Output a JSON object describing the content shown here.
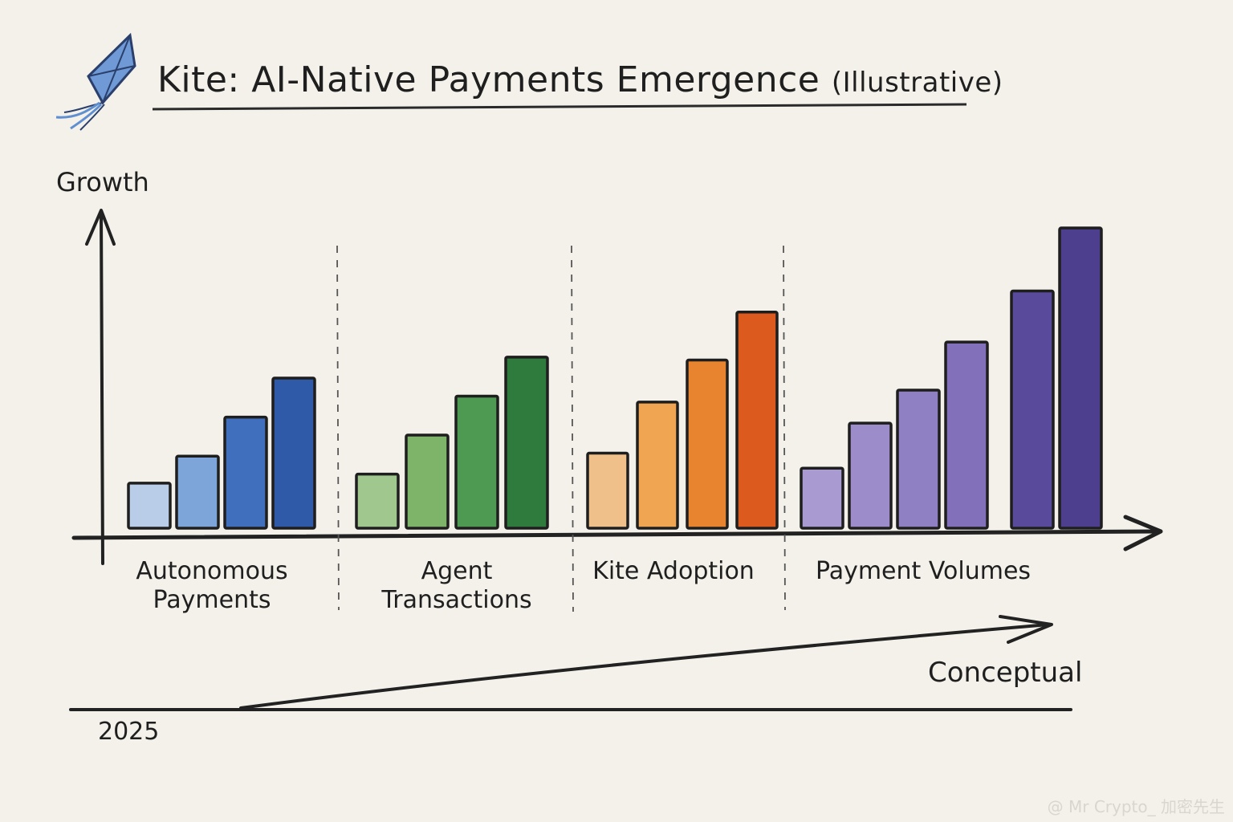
{
  "title": {
    "main": "Kite: AI-Native Payments Emergence",
    "suffix": "(Illustrative)"
  },
  "kite_icon": "kite-icon",
  "watermark": "@ Mr Crypto_ 加密先生",
  "annotations": {
    "year": "2025",
    "trend": "Conceptual"
  },
  "chart_data": {
    "type": "bar",
    "ylabel": "Growth",
    "xlabel": "",
    "y_ticks": "none",
    "grid": false,
    "legend": "none",
    "ylim": [
      0,
      100
    ],
    "groups": [
      {
        "label": "Autonomous\nPayments",
        "values": [
          15,
          24,
          37,
          50
        ],
        "colors": [
          "#b9cde8",
          "#7ea5da",
          "#3f6fbd",
          "#2e5aa8"
        ]
      },
      {
        "label": "Agent Transactions",
        "values": [
          18,
          31,
          44,
          57
        ],
        "colors": [
          "#9fc78e",
          "#7db46a",
          "#4f9a52",
          "#2f7a3d"
        ]
      },
      {
        "label": "Kite Adoption",
        "values": [
          25,
          42,
          56,
          72
        ],
        "colors": [
          "#f0c08a",
          "#f0a553",
          "#e8842f",
          "#dd5a1e"
        ]
      },
      {
        "label": "Payment Volumes",
        "values": [
          20,
          35,
          46,
          62,
          79,
          100
        ],
        "colors": [
          "#a99bd1",
          "#9c8cca",
          "#8f80c3",
          "#8270bb",
          "#5a4a9c",
          "#4d3f8e"
        ]
      }
    ]
  }
}
